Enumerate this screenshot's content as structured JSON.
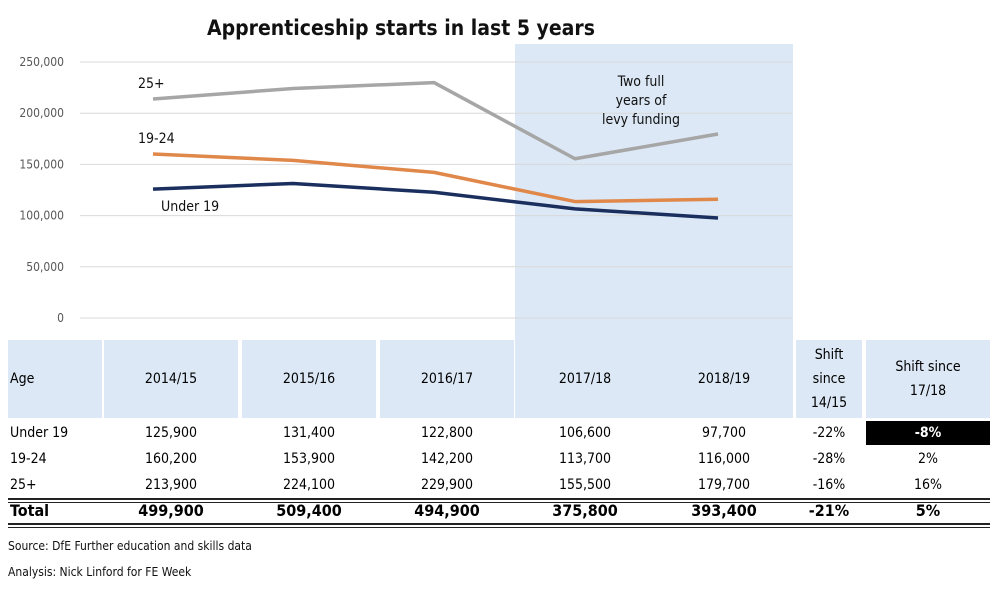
{
  "chart_data": {
    "type": "line",
    "title": "Apprenticeship starts in last 5 years",
    "categories": [
      "2014/15",
      "2015/16",
      "2016/17",
      "2017/18",
      "2018/19"
    ],
    "ylim": [
      0,
      250000
    ],
    "yticks": [
      "0",
      "50,000",
      "100,000",
      "150,000",
      "200,000",
      "250,000"
    ],
    "grid": true,
    "series": [
      {
        "name": "25+",
        "color": "#a6a6a6",
        "values": [
          213900,
          224100,
          229900,
          155500,
          179700
        ]
      },
      {
        "name": "19-24",
        "color": "#e0884a",
        "values": [
          160200,
          153900,
          142200,
          113700,
          116000
        ]
      },
      {
        "name": "Under 19",
        "color": "#1b2f5e",
        "values": [
          125900,
          131400,
          122800,
          106600,
          97700
        ]
      }
    ],
    "annotation": {
      "text": [
        "Two full",
        "years of",
        "levy funding"
      ],
      "shaded_categories": [
        "2017/18",
        "2018/19"
      ],
      "shade_color": "#dce8f5"
    }
  },
  "table": {
    "headers": [
      "Age",
      "2014/15",
      "2015/16",
      "2016/17",
      "2017/18",
      "2018/19"
    ],
    "shift1_header": [
      "Shift",
      "since",
      "14/15"
    ],
    "shift2_header": [
      "Shift since",
      "17/18"
    ],
    "rows": [
      [
        "Under 19",
        "125,900",
        "131,400",
        "122,800",
        "106,600",
        "97,700",
        "-22%",
        "-8%"
      ],
      [
        "19-24",
        "160,200",
        "153,900",
        "142,200",
        "113,700",
        "116,000",
        "-28%",
        "2%"
      ],
      [
        "25+",
        "213,900",
        "224,100",
        "229,900",
        "155,500",
        "179,700",
        "-16%",
        "16%"
      ]
    ],
    "total": [
      "Total",
      "499,900",
      "509,400",
      "494,900",
      "375,800",
      "393,400",
      "-21%",
      "5%"
    ]
  },
  "footer": {
    "source": "Source: DfE Further education and skills data",
    "analysis": "Analysis: Nick Linford for FE Week"
  }
}
